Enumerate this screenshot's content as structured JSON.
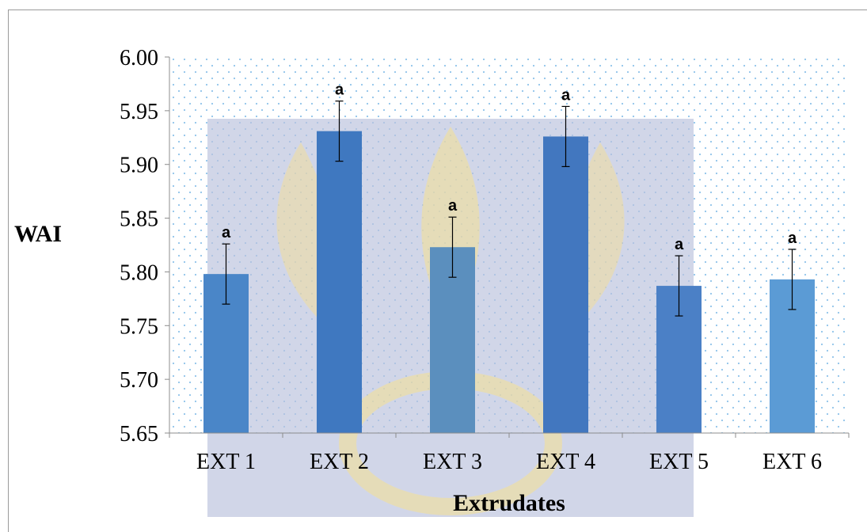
{
  "chart_data": {
    "type": "bar",
    "title": "",
    "xlabel": "Extrudates",
    "ylabel": "WAI",
    "categories": [
      "EXT 1",
      "EXT 2",
      "EXT 3",
      "EXT 4",
      "EXT 5",
      "EXT 6"
    ],
    "values": [
      5.798,
      5.931,
      5.823,
      5.926,
      5.787,
      5.793
    ],
    "error": [
      0.028,
      0.028,
      0.028,
      0.028,
      0.028,
      0.028
    ],
    "significance_labels": [
      "a",
      "a",
      "a",
      "a",
      "a",
      "a"
    ],
    "ylim": [
      5.65,
      6.0
    ],
    "yticks": [
      "5.65",
      "5.70",
      "5.75",
      "5.80",
      "5.85",
      "5.90",
      "5.95",
      "6.00"
    ],
    "grid": "dotted",
    "legend": "none",
    "colors": {
      "bars": [
        "#4a86c8",
        "#3f78c0",
        "#5b8fbe",
        "#4277bf",
        "#4b80c6",
        "#5b9bd5"
      ],
      "plot_dots": "#8fc3ea",
      "watermark_bg": "#bcc3de",
      "watermark_gold": "#e8d9a4",
      "error_bar": "#000000",
      "axis": "#8c8c8c"
    }
  }
}
